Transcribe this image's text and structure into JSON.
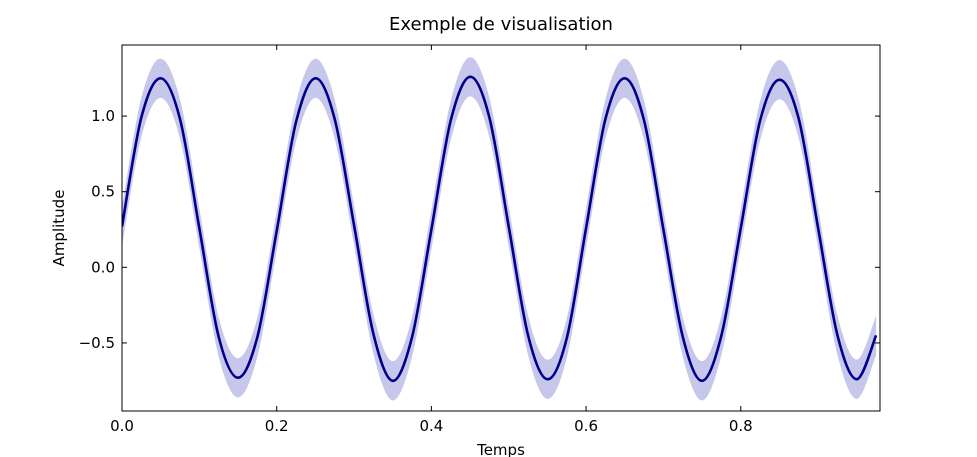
{
  "chart_data": {
    "type": "line",
    "title": "Exemple de visualisation",
    "xlabel": "Temps",
    "ylabel": "Amplitude",
    "xlim": [
      0.0,
      0.98
    ],
    "ylim": [
      -0.95,
      1.47
    ],
    "xticks": [
      {
        "value": 0.0,
        "label": "0.0"
      },
      {
        "value": 0.2,
        "label": "0.2"
      },
      {
        "value": 0.4,
        "label": "0.4"
      },
      {
        "value": 0.6,
        "label": "0.6"
      },
      {
        "value": 0.8,
        "label": "0.8"
      }
    ],
    "yticks": [
      {
        "value": -0.5,
        "label": "−0.5"
      },
      {
        "value": 0.0,
        "label": "0.0"
      },
      {
        "value": 0.5,
        "label": "0.5"
      },
      {
        "value": 1.0,
        "label": "1.0"
      }
    ],
    "grid": false,
    "legend": "none",
    "colors": {
      "line": "#00008b",
      "band": "#9999dd"
    },
    "series": [
      {
        "x": [
          0.0,
          0.025,
          0.05,
          0.075,
          0.1,
          0.125,
          0.15,
          0.175,
          0.2,
          0.225,
          0.25,
          0.275,
          0.3,
          0.325,
          0.35,
          0.375,
          0.4,
          0.425,
          0.45,
          0.475,
          0.5,
          0.525,
          0.55,
          0.575,
          0.6,
          0.625,
          0.65,
          0.675,
          0.7,
          0.725,
          0.75,
          0.775,
          0.8,
          0.825,
          0.85,
          0.875,
          0.9,
          0.925,
          0.95,
          0.975
        ],
        "y": [
          0.27,
          0.99,
          1.25,
          0.98,
          0.26,
          -0.46,
          -0.73,
          -0.46,
          0.24,
          0.96,
          1.25,
          0.98,
          0.28,
          -0.44,
          -0.75,
          -0.46,
          0.25,
          0.97,
          1.26,
          0.99,
          0.27,
          -0.45,
          -0.74,
          -0.47,
          0.26,
          0.98,
          1.25,
          0.97,
          0.25,
          -0.46,
          -0.75,
          -0.45,
          0.26,
          0.97,
          1.24,
          0.98,
          0.26,
          -0.45,
          -0.74,
          -0.45
        ],
        "band_y_low": [
          0.14,
          0.86,
          1.12,
          0.85,
          0.13,
          -0.59,
          -0.86,
          -0.59,
          0.11,
          0.83,
          1.12,
          0.85,
          0.15,
          -0.57,
          -0.88,
          -0.59,
          0.12,
          0.84,
          1.13,
          0.86,
          0.14,
          -0.58,
          -0.87,
          -0.6,
          0.13,
          0.85,
          1.12,
          0.84,
          0.12,
          -0.59,
          -0.88,
          -0.58,
          0.13,
          0.84,
          1.11,
          0.85,
          0.13,
          -0.58,
          -0.87,
          -0.58
        ],
        "band_y_high": [
          0.4,
          1.12,
          1.38,
          1.11,
          0.39,
          -0.33,
          -0.6,
          -0.33,
          0.37,
          1.09,
          1.38,
          1.11,
          0.41,
          -0.31,
          -0.62,
          -0.33,
          0.38,
          1.1,
          1.39,
          1.12,
          0.4,
          -0.32,
          -0.61,
          -0.34,
          0.39,
          1.11,
          1.38,
          1.1,
          0.38,
          -0.33,
          -0.62,
          -0.32,
          0.39,
          1.1,
          1.37,
          1.11,
          0.39,
          -0.32,
          -0.61,
          -0.32
        ]
      }
    ]
  }
}
